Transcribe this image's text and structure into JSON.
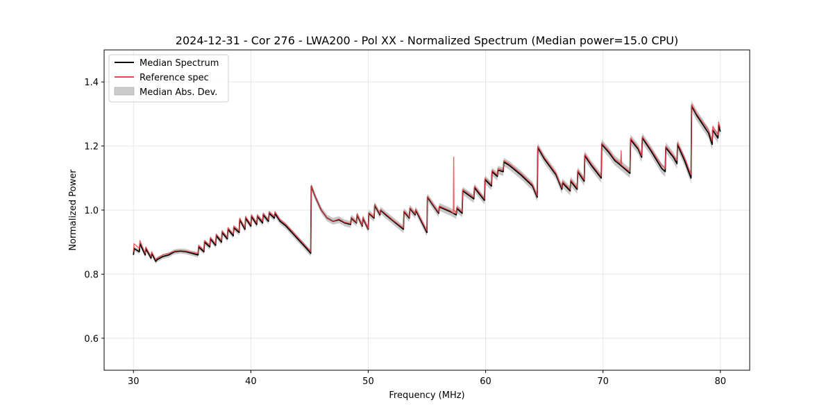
{
  "chart_data": {
    "type": "line",
    "title": "2024-12-31 - Cor 276 - LWA200 - Pol XX - Normalized Spectrum (Median power=15.0 CPU)",
    "xlabel": "Frequency (MHz)",
    "ylabel": "Normalized Power",
    "xlim": [
      27.5,
      82.5
    ],
    "ylim": [
      0.5,
      1.5
    ],
    "xticks": [
      30,
      40,
      50,
      60,
      70,
      80
    ],
    "yticks": [
      0.6,
      0.8,
      1.0,
      1.2,
      1.4
    ],
    "xtick_labels": [
      "30",
      "40",
      "50",
      "60",
      "70",
      "80"
    ],
    "ytick_labels": [
      "0.6",
      "0.8",
      "1.0",
      "1.2",
      "1.4"
    ],
    "grid": true,
    "legend_position": "upper-left",
    "legend": [
      {
        "label": "Median Spectrum",
        "kind": "line",
        "color": "#000000"
      },
      {
        "label": "Reference spec",
        "kind": "line",
        "color": "#e8474a"
      },
      {
        "label": "Median Abs. Dev.",
        "kind": "patch",
        "color": "#bdbdbd"
      }
    ],
    "series": [
      {
        "name": "Median Spectrum",
        "color": "#000000",
        "x": [
          30.0,
          30.05,
          30.5,
          30.55,
          31.0,
          31.05,
          31.5,
          31.55,
          31.9,
          32.0,
          32.5,
          33.0,
          33.5,
          34.0,
          34.5,
          35.0,
          35.5,
          35.55,
          36.0,
          36.05,
          36.5,
          36.55,
          37.0,
          37.05,
          37.5,
          37.55,
          38.0,
          38.05,
          38.5,
          38.55,
          39.0,
          39.05,
          39.5,
          39.55,
          40.0,
          40.05,
          40.5,
          40.55,
          41.0,
          41.05,
          41.5,
          41.55,
          42.0,
          42.05,
          42.5,
          43.0,
          43.5,
          44.0,
          44.5,
          45.0,
          45.1,
          45.15,
          45.5,
          46.0,
          46.5,
          47.0,
          47.5,
          48.0,
          48.5,
          48.55,
          49.0,
          49.05,
          49.5,
          49.55,
          50.0,
          50.05,
          50.5,
          50.55,
          51.0,
          51.05,
          51.5,
          52.0,
          52.5,
          53.0,
          53.05,
          53.5,
          53.55,
          54.0,
          54.05,
          55.0,
          55.05,
          56.0,
          56.05,
          57.0,
          57.5,
          57.55,
          58.0,
          58.05,
          59.0,
          59.05,
          59.9,
          59.95,
          60.5,
          60.55,
          61.0,
          61.05,
          61.5,
          61.55,
          62.0,
          63.0,
          64.0,
          64.4,
          64.45,
          65.0,
          66.0,
          66.5,
          66.55,
          67.2,
          67.25,
          67.8,
          67.85,
          68.4,
          68.45,
          69.0,
          69.85,
          69.9,
          70.5,
          71.0,
          71.5,
          72.3,
          72.35,
          73.0,
          73.3,
          73.35,
          74.0,
          75.0,
          75.3,
          75.35,
          76.0,
          76.3,
          76.35,
          77.0,
          77.5,
          77.55,
          78.0,
          79.0,
          79.3,
          79.35,
          79.8,
          79.85,
          80.0
        ],
        "y": [
          0.86,
          0.88,
          0.87,
          0.895,
          0.86,
          0.88,
          0.85,
          0.865,
          0.84,
          0.845,
          0.855,
          0.86,
          0.87,
          0.872,
          0.87,
          0.865,
          0.86,
          0.885,
          0.87,
          0.9,
          0.885,
          0.91,
          0.89,
          0.92,
          0.9,
          0.93,
          0.91,
          0.94,
          0.92,
          0.945,
          0.93,
          0.97,
          0.94,
          0.975,
          0.95,
          0.98,
          0.955,
          0.98,
          0.96,
          0.985,
          0.965,
          0.99,
          0.975,
          0.99,
          0.965,
          0.95,
          0.93,
          0.91,
          0.89,
          0.87,
          0.865,
          1.075,
          1.04,
          1.0,
          0.975,
          0.965,
          0.97,
          0.96,
          0.955,
          0.975,
          0.96,
          0.985,
          0.95,
          0.975,
          0.94,
          0.99,
          0.975,
          1.015,
          0.985,
          1.0,
          0.985,
          0.97,
          0.955,
          0.94,
          0.995,
          0.975,
          1.005,
          0.985,
          1.0,
          0.93,
          1.04,
          0.99,
          1.01,
          0.995,
          0.985,
          1.005,
          0.99,
          1.06,
          1.035,
          1.07,
          1.03,
          1.095,
          1.075,
          1.12,
          1.105,
          1.125,
          1.12,
          1.15,
          1.14,
          1.11,
          1.075,
          1.04,
          1.195,
          1.16,
          1.11,
          1.065,
          1.085,
          1.06,
          1.09,
          1.065,
          1.12,
          1.09,
          1.17,
          1.14,
          1.1,
          1.205,
          1.18,
          1.155,
          1.14,
          1.115,
          1.22,
          1.19,
          1.165,
          1.225,
          1.19,
          1.13,
          1.12,
          1.195,
          1.165,
          1.145,
          1.205,
          1.15,
          1.1,
          1.325,
          1.295,
          1.24,
          1.205,
          1.25,
          1.225,
          1.265,
          1.245
        ]
      },
      {
        "name": "Reference spec",
        "color": "#e8474a",
        "x": [
          30.0,
          30.05,
          30.5,
          30.55,
          31.0,
          31.05,
          31.5,
          31.55,
          31.9,
          32.0,
          32.5,
          33.0,
          33.5,
          34.0,
          34.5,
          35.0,
          35.5,
          35.55,
          36.0,
          36.05,
          36.5,
          36.55,
          37.0,
          37.05,
          37.5,
          37.55,
          38.0,
          38.05,
          38.5,
          38.55,
          39.0,
          39.05,
          39.5,
          39.55,
          40.0,
          40.05,
          40.5,
          40.55,
          41.0,
          41.05,
          41.5,
          41.55,
          42.0,
          42.05,
          42.5,
          43.0,
          43.5,
          44.0,
          44.5,
          45.0,
          45.1,
          45.15,
          45.5,
          46.0,
          46.5,
          47.0,
          47.5,
          48.0,
          48.5,
          48.55,
          49.0,
          49.05,
          49.5,
          49.55,
          50.0,
          50.05,
          50.5,
          50.55,
          51.0,
          51.05,
          51.5,
          52.0,
          52.5,
          53.0,
          53.05,
          53.5,
          53.55,
          54.0,
          54.05,
          55.0,
          55.05,
          56.0,
          56.05,
          57.0,
          57.25,
          57.28,
          57.31,
          57.5,
          57.55,
          58.0,
          58.05,
          59.0,
          59.05,
          59.9,
          59.95,
          60.5,
          60.55,
          61.0,
          61.05,
          61.5,
          61.55,
          62.0,
          63.0,
          64.0,
          64.4,
          64.45,
          65.0,
          66.0,
          66.5,
          66.55,
          67.2,
          67.25,
          67.8,
          67.85,
          68.4,
          68.45,
          69.0,
          69.85,
          69.9,
          70.5,
          71.0,
          71.5,
          71.55,
          71.6,
          72.3,
          72.35,
          73.0,
          73.3,
          73.35,
          74.0,
          75.0,
          75.3,
          75.35,
          76.0,
          76.3,
          76.35,
          77.0,
          77.5,
          77.55,
          78.0,
          79.0,
          79.3,
          79.35,
          79.8,
          79.85,
          80.0
        ],
        "y": [
          0.87,
          0.895,
          0.88,
          0.905,
          0.865,
          0.885,
          0.855,
          0.87,
          0.845,
          0.85,
          0.86,
          0.865,
          0.872,
          0.874,
          0.872,
          0.868,
          0.865,
          0.89,
          0.875,
          0.905,
          0.89,
          0.915,
          0.895,
          0.925,
          0.905,
          0.935,
          0.915,
          0.945,
          0.925,
          0.95,
          0.935,
          0.975,
          0.945,
          0.98,
          0.955,
          0.985,
          0.96,
          0.985,
          0.965,
          0.99,
          0.97,
          0.995,
          0.98,
          0.995,
          0.97,
          0.955,
          0.935,
          0.915,
          0.895,
          0.875,
          0.87,
          1.075,
          1.04,
          1.0,
          0.975,
          0.965,
          0.972,
          0.962,
          0.958,
          0.978,
          0.962,
          0.988,
          0.952,
          0.978,
          0.942,
          0.992,
          0.978,
          1.018,
          0.988,
          1.002,
          0.988,
          0.972,
          0.958,
          0.944,
          0.998,
          0.978,
          1.008,
          0.988,
          1.003,
          0.935,
          1.043,
          0.993,
          1.013,
          0.998,
          0.99,
          1.165,
          1.0,
          0.99,
          1.01,
          0.995,
          1.065,
          1.04,
          1.075,
          1.035,
          1.1,
          1.08,
          1.125,
          1.11,
          1.13,
          1.125,
          1.155,
          1.145,
          1.115,
          1.08,
          1.045,
          1.2,
          1.165,
          1.115,
          1.07,
          1.09,
          1.065,
          1.095,
          1.07,
          1.125,
          1.095,
          1.175,
          1.145,
          1.105,
          1.21,
          1.185,
          1.16,
          1.145,
          1.185,
          1.14,
          1.12,
          1.225,
          1.195,
          1.17,
          1.23,
          1.195,
          1.14,
          1.13,
          1.2,
          1.17,
          1.155,
          1.21,
          1.16,
          1.11,
          1.33,
          1.3,
          1.25,
          1.215,
          1.26,
          1.235,
          1.275,
          1.255
        ]
      }
    ],
    "mad_band_halfwidth": 0.012
  }
}
